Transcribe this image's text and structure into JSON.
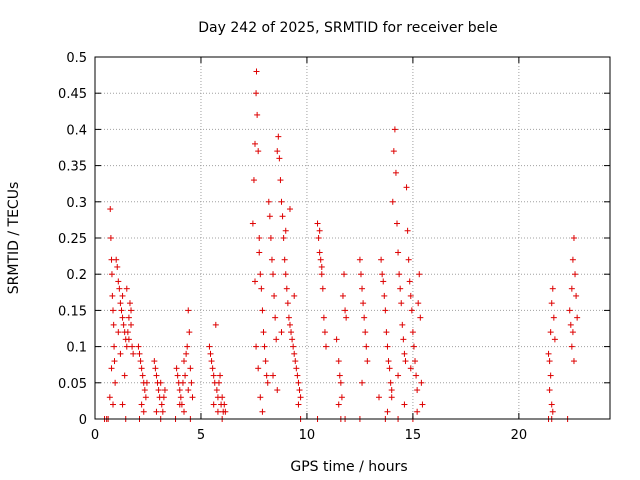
{
  "chart_data": {
    "type": "scatter",
    "title": "Day 242 of 2025, SRMTID for receiver bele",
    "xlabel": "GPS time / hours",
    "ylabel": "SRMTID / TECUs",
    "xlim": [
      0,
      24.3
    ],
    "ylim": [
      0,
      0.5
    ],
    "xticks": [
      0,
      5,
      10,
      15,
      20
    ],
    "yticks": [
      0,
      0.05,
      0.1,
      0.15,
      0.2,
      0.25,
      0.3,
      0.35,
      0.4,
      0.45,
      0.5
    ],
    "ytick_labels": [
      "0",
      "0.05",
      "0.1",
      "0.15",
      "0.2",
      "0.25",
      "0.3",
      "0.35",
      "0.4",
      "0.45",
      "0.5"
    ],
    "grid": true,
    "marker": "+",
    "color": "#dd0000",
    "series": [
      {
        "name": "SRMTID",
        "points": [
          [
            0.45,
            0
          ],
          [
            0.55,
            0
          ],
          [
            0.62,
            0
          ],
          [
            0.72,
            0.29
          ],
          [
            0.75,
            0.25
          ],
          [
            0.78,
            0.22
          ],
          [
            0.8,
            0.2
          ],
          [
            0.82,
            0.17
          ],
          [
            0.85,
            0.15
          ],
          [
            0.88,
            0.13
          ],
          [
            0.9,
            0.1
          ],
          [
            0.92,
            0.08
          ],
          [
            0.95,
            0.05
          ],
          [
            0.7,
            0.03
          ],
          [
            0.78,
            0.07
          ],
          [
            0.85,
            0.02
          ],
          [
            1.0,
            0.22
          ],
          [
            1.05,
            0.21
          ],
          [
            1.1,
            0.19
          ],
          [
            1.15,
            0.18
          ],
          [
            1.2,
            0.16
          ],
          [
            1.25,
            0.15
          ],
          [
            1.3,
            0.14
          ],
          [
            1.35,
            0.13
          ],
          [
            1.4,
            0.12
          ],
          [
            1.45,
            0.11
          ],
          [
            1.5,
            0.1
          ],
          [
            1.55,
            0.12
          ],
          [
            1.6,
            0.14
          ],
          [
            1.65,
            0.16
          ],
          [
            1.7,
            0.13
          ],
          [
            1.75,
            0.1
          ],
          [
            1.8,
            0.09
          ],
          [
            1.1,
            0.12
          ],
          [
            1.2,
            0.09
          ],
          [
            1.3,
            0.17
          ],
          [
            1.4,
            0.06
          ],
          [
            1.5,
            0.18
          ],
          [
            1.6,
            0.11
          ],
          [
            1.7,
            0.15
          ],
          [
            1.3,
            0.02
          ],
          [
            1.45,
            0
          ],
          [
            2.05,
            0.1
          ],
          [
            2.1,
            0.09
          ],
          [
            2.15,
            0.08
          ],
          [
            2.2,
            0.07
          ],
          [
            2.25,
            0.06
          ],
          [
            2.3,
            0.05
          ],
          [
            2.35,
            0.04
          ],
          [
            2.4,
            0.03
          ],
          [
            2.45,
            0.05
          ],
          [
            2.2,
            0.02
          ],
          [
            2.3,
            0.01
          ],
          [
            2.1,
            0
          ],
          [
            2.8,
            0.08
          ],
          [
            2.85,
            0.07
          ],
          [
            2.9,
            0.06
          ],
          [
            2.95,
            0.05
          ],
          [
            3.0,
            0.04
          ],
          [
            3.05,
            0.03
          ],
          [
            3.1,
            0.05
          ],
          [
            3.15,
            0.02
          ],
          [
            3.2,
            0.01
          ],
          [
            3.25,
            0.03
          ],
          [
            3.3,
            0.04
          ],
          [
            2.9,
            0.01
          ],
          [
            3.1,
            0
          ],
          [
            3.8,
            0
          ],
          [
            3.85,
            0.07
          ],
          [
            3.9,
            0.06
          ],
          [
            3.95,
            0.05
          ],
          [
            4.0,
            0.04
          ],
          [
            4.05,
            0.03
          ],
          [
            4.1,
            0.02
          ],
          [
            4.15,
            0.05
          ],
          [
            4.2,
            0.08
          ],
          [
            4.25,
            0.06
          ],
          [
            4.3,
            0.09
          ],
          [
            4.35,
            0.1
          ],
          [
            4.4,
            0.15
          ],
          [
            4.45,
            0.12
          ],
          [
            4.5,
            0.07
          ],
          [
            4.55,
            0.05
          ],
          [
            4.6,
            0.03
          ],
          [
            4.0,
            0.02
          ],
          [
            4.2,
            0.01
          ],
          [
            4.4,
            0.04
          ],
          [
            4.5,
            0
          ],
          [
            5.4,
            0.1
          ],
          [
            5.45,
            0.09
          ],
          [
            5.5,
            0.08
          ],
          [
            5.55,
            0.07
          ],
          [
            5.6,
            0.06
          ],
          [
            5.65,
            0.05
          ],
          [
            5.7,
            0.13
          ],
          [
            5.75,
            0.04
          ],
          [
            5.8,
            0.03
          ],
          [
            5.85,
            0.05
          ],
          [
            5.9,
            0.06
          ],
          [
            5.95,
            0.02
          ],
          [
            6.0,
            0.03
          ],
          [
            6.05,
            0.01
          ],
          [
            6.1,
            0.02
          ],
          [
            6.15,
            0.01
          ],
          [
            5.6,
            0.02
          ],
          [
            5.8,
            0.01
          ],
          [
            6.0,
            0
          ],
          [
            7.45,
            0.27
          ],
          [
            7.5,
            0.33
          ],
          [
            7.55,
            0.38
          ],
          [
            7.6,
            0.45
          ],
          [
            7.62,
            0.48
          ],
          [
            7.65,
            0.42
          ],
          [
            7.7,
            0.37
          ],
          [
            7.75,
            0.25
          ],
          [
            7.8,
            0.2
          ],
          [
            7.85,
            0.18
          ],
          [
            7.9,
            0.15
          ],
          [
            7.95,
            0.12
          ],
          [
            8.0,
            0.1
          ],
          [
            8.05,
            0.08
          ],
          [
            8.1,
            0.06
          ],
          [
            8.15,
            0.05
          ],
          [
            7.6,
            0.1
          ],
          [
            7.7,
            0.07
          ],
          [
            7.8,
            0.03
          ],
          [
            7.9,
            0.01
          ],
          [
            7.55,
            0.19
          ],
          [
            7.75,
            0.23
          ],
          [
            8.2,
            0.3
          ],
          [
            8.25,
            0.28
          ],
          [
            8.3,
            0.25
          ],
          [
            8.35,
            0.22
          ],
          [
            8.4,
            0.2
          ],
          [
            8.45,
            0.17
          ],
          [
            8.5,
            0.14
          ],
          [
            8.55,
            0.11
          ],
          [
            8.6,
            0.37
          ],
          [
            8.65,
            0.39
          ],
          [
            8.7,
            0.36
          ],
          [
            8.75,
            0.33
          ],
          [
            8.8,
            0.3
          ],
          [
            8.85,
            0.28
          ],
          [
            8.9,
            0.25
          ],
          [
            8.95,
            0.22
          ],
          [
            9.0,
            0.2
          ],
          [
            9.05,
            0.18
          ],
          [
            9.1,
            0.16
          ],
          [
            9.15,
            0.14
          ],
          [
            9.2,
            0.13
          ],
          [
            9.25,
            0.12
          ],
          [
            9.3,
            0.11
          ],
          [
            9.35,
            0.1
          ],
          [
            9.4,
            0.09
          ],
          [
            9.45,
            0.08
          ],
          [
            9.5,
            0.07
          ],
          [
            9.55,
            0.06
          ],
          [
            9.6,
            0.05
          ],
          [
            9.65,
            0.04
          ],
          [
            9.7,
            0.03
          ],
          [
            8.4,
            0.06
          ],
          [
            8.6,
            0.04
          ],
          [
            8.8,
            0.12
          ],
          [
            9.0,
            0.26
          ],
          [
            9.2,
            0.29
          ],
          [
            9.4,
            0.17
          ],
          [
            9.6,
            0.02
          ],
          [
            9.7,
            0
          ],
          [
            10.5,
            0.27
          ],
          [
            10.55,
            0.25
          ],
          [
            10.6,
            0.23
          ],
          [
            10.65,
            0.22
          ],
          [
            10.7,
            0.2
          ],
          [
            10.75,
            0.18
          ],
          [
            10.8,
            0.14
          ],
          [
            10.85,
            0.12
          ],
          [
            10.9,
            0.1
          ],
          [
            10.6,
            0.26
          ],
          [
            10.7,
            0.21
          ],
          [
            10.5,
            0
          ],
          [
            11.4,
            0.11
          ],
          [
            11.5,
            0.08
          ],
          [
            11.55,
            0.06
          ],
          [
            11.6,
            0.05
          ],
          [
            11.65,
            0.03
          ],
          [
            11.7,
            0.17
          ],
          [
            11.75,
            0.2
          ],
          [
            11.8,
            0.15
          ],
          [
            11.85,
            0.14
          ],
          [
            11.5,
            0.02
          ],
          [
            11.6,
            0
          ],
          [
            11.8,
            0
          ],
          [
            12.5,
            0.22
          ],
          [
            12.55,
            0.2
          ],
          [
            12.6,
            0.18
          ],
          [
            12.65,
            0.16
          ],
          [
            12.7,
            0.14
          ],
          [
            12.75,
            0.12
          ],
          [
            12.8,
            0.1
          ],
          [
            12.85,
            0.08
          ],
          [
            12.6,
            0.05
          ],
          [
            12.5,
            0
          ],
          [
            13.4,
            0.03
          ],
          [
            13.5,
            0.22
          ],
          [
            13.55,
            0.2
          ],
          [
            13.6,
            0.19
          ],
          [
            13.65,
            0.17
          ],
          [
            13.7,
            0.15
          ],
          [
            13.75,
            0.12
          ],
          [
            13.8,
            0.1
          ],
          [
            13.85,
            0.08
          ],
          [
            13.9,
            0.07
          ],
          [
            13.95,
            0.05
          ],
          [
            14.0,
            0.03
          ],
          [
            14.05,
            0.3
          ],
          [
            14.1,
            0.37
          ],
          [
            14.15,
            0.4
          ],
          [
            14.2,
            0.34
          ],
          [
            14.25,
            0.27
          ],
          [
            14.3,
            0.23
          ],
          [
            14.35,
            0.2
          ],
          [
            14.4,
            0.18
          ],
          [
            14.45,
            0.16
          ],
          [
            14.5,
            0.13
          ],
          [
            14.55,
            0.11
          ],
          [
            14.6,
            0.09
          ],
          [
            14.65,
            0.08
          ],
          [
            14.7,
            0.32
          ],
          [
            14.75,
            0.26
          ],
          [
            14.8,
            0.22
          ],
          [
            14.85,
            0.19
          ],
          [
            14.9,
            0.17
          ],
          [
            14.95,
            0.15
          ],
          [
            15.0,
            0.12
          ],
          [
            15.05,
            0.1
          ],
          [
            15.1,
            0.08
          ],
          [
            15.15,
            0.06
          ],
          [
            15.2,
            0.04
          ],
          [
            15.25,
            0.16
          ],
          [
            15.3,
            0.2
          ],
          [
            15.35,
            0.14
          ],
          [
            15.4,
            0.05
          ],
          [
            15.45,
            0.02
          ],
          [
            13.8,
            0.01
          ],
          [
            14.0,
            0.04
          ],
          [
            14.3,
            0.06
          ],
          [
            14.6,
            0.02
          ],
          [
            14.9,
            0.07
          ],
          [
            15.2,
            0.01
          ],
          [
            13.7,
            0
          ],
          [
            14.3,
            0
          ],
          [
            15.0,
            0
          ],
          [
            21.4,
            0.09
          ],
          [
            21.45,
            0.08
          ],
          [
            21.5,
            0.12
          ],
          [
            21.55,
            0.16
          ],
          [
            21.6,
            0.18
          ],
          [
            21.65,
            0.14
          ],
          [
            21.7,
            0.11
          ],
          [
            21.5,
            0.06
          ],
          [
            21.45,
            0.04
          ],
          [
            21.55,
            0.02
          ],
          [
            21.6,
            0.01
          ],
          [
            21.4,
            0
          ],
          [
            21.55,
            0
          ],
          [
            22.4,
            0.15
          ],
          [
            22.45,
            0.13
          ],
          [
            22.5,
            0.18
          ],
          [
            22.55,
            0.22
          ],
          [
            22.6,
            0.25
          ],
          [
            22.65,
            0.2
          ],
          [
            22.7,
            0.17
          ],
          [
            22.75,
            0.14
          ],
          [
            22.5,
            0.1
          ],
          [
            22.55,
            0.12
          ],
          [
            22.6,
            0.08
          ],
          [
            22.3,
            0
          ]
        ]
      }
    ]
  }
}
